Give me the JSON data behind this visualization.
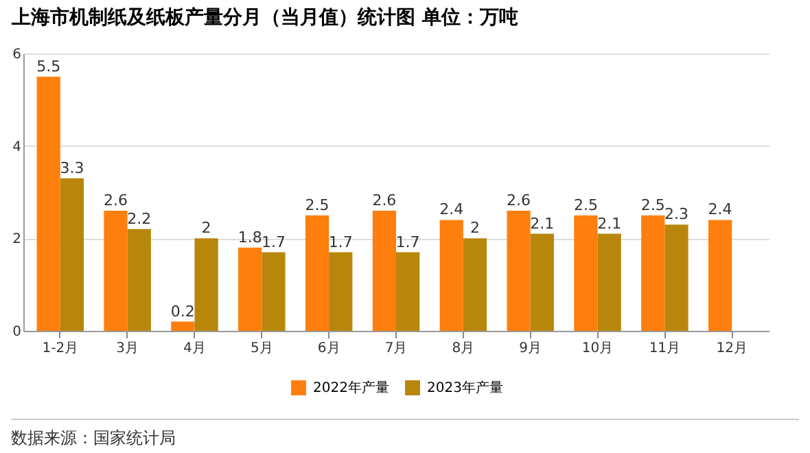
{
  "chart_data": {
    "type": "bar",
    "title": "上海市机制纸及纸板产量分月（当月值）统计图 单位：万吨",
    "categories": [
      "1-2月",
      "3月",
      "4月",
      "5月",
      "6月",
      "7月",
      "8月",
      "9月",
      "10月",
      "11月",
      "12月"
    ],
    "series": [
      {
        "name": "2022年产量",
        "color": "#ff7f0e",
        "values": [
          5.5,
          2.6,
          0.2,
          1.8,
          2.5,
          2.6,
          2.4,
          2.6,
          2.5,
          2.5,
          2.4
        ]
      },
      {
        "name": "2023年产量",
        "color": "#b8860b",
        "values": [
          3.3,
          2.2,
          2,
          1.7,
          1.7,
          1.7,
          2,
          2.1,
          2.1,
          2.3,
          null
        ]
      }
    ],
    "ylim": [
      0,
      6
    ],
    "yticks": [
      0,
      2,
      4,
      6
    ],
    "grid": "y",
    "legend": "bottom",
    "data_labels": true,
    "annotations": [
      "数据来源：国家统计局"
    ]
  }
}
